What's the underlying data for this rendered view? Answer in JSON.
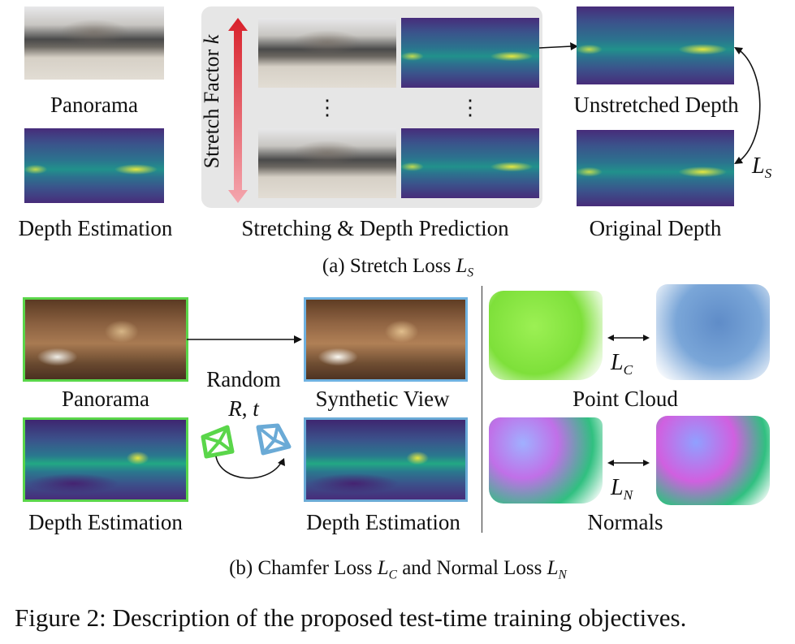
{
  "top": {
    "panorama_label": "Panorama",
    "depth_estimation_label": "Depth Estimation",
    "stretch_axis_label": "Stretch Factor",
    "stretch_axis_var": "k",
    "stretching_label": "Stretching & Depth Prediction",
    "unstretched_label": "Unstretched Depth",
    "original_label": "Original Depth",
    "loss_symbol": "L",
    "loss_sub": "S",
    "ellipsis": "⋮",
    "caption_prefix": "(a) Stretch Loss ",
    "caption_symbol": "L",
    "caption_sub": "S"
  },
  "bottom": {
    "panorama_label": "Panorama",
    "depth_estimation_left_label": "Depth Estimation",
    "random_label": "Random",
    "rt_R": "R",
    "rt_sep": ", ",
    "rt_t": "t",
    "synthetic_view_label": "Synthetic View",
    "depth_estimation_right_label": "Depth Estimation",
    "point_cloud_label": "Point Cloud",
    "normals_label": "Normals",
    "lc_symbol": "L",
    "lc_sub": "C",
    "ln_symbol": "L",
    "ln_sub": "N",
    "caption_prefix": "(b) Chamfer Loss ",
    "caption_lc": "L",
    "caption_lc_sub": "C",
    "caption_mid": " and Normal Loss ",
    "caption_ln": "L",
    "caption_ln_sub": "N"
  },
  "figure_caption": "Figure 2: Description of the proposed test-time training objectives.",
  "colors": {
    "green_frame": "#5ad64a",
    "blue_frame": "#6aaad6",
    "arrow_red_top": "#d8202a",
    "arrow_red_bottom": "#f4a6ae",
    "panel_bg": "#e6e6e6",
    "pointcloud_green": "#7ee03a",
    "pointcloud_blue": "#7aa6d8"
  }
}
